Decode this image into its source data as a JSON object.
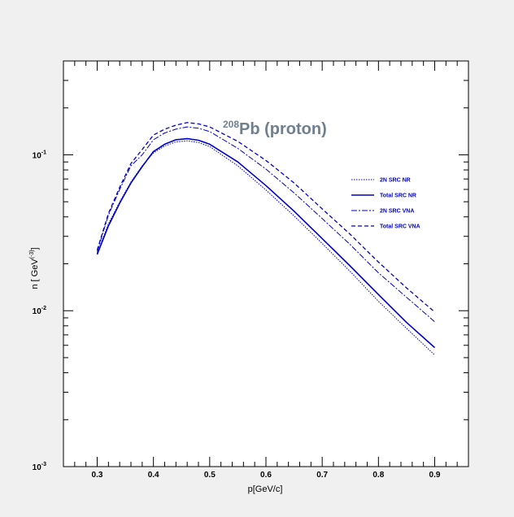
{
  "chart_data": {
    "type": "line",
    "title": "Pb (proton)",
    "title_superscript": "208",
    "title_color": "#6f7f90",
    "xlabel": "p[GeV/c]",
    "ylabel_base": "n [ GeV",
    "ylabel_exp": "(-3)",
    "ylabel_end": "]",
    "xlim": [
      0.24,
      0.96
    ],
    "ylim": [
      0.001,
      0.4
    ],
    "yscale": "log",
    "grid": false,
    "legend_position": "right",
    "line_color": "#0000cc",
    "x_ticks": [
      "0.3",
      "0.4",
      "0.5",
      "0.6",
      "0.7",
      "0.8",
      "0.9"
    ],
    "y_ticks": [
      {
        "base": "10",
        "exp": "-3",
        "value": 0.001
      },
      {
        "base": "10",
        "exp": "-2",
        "value": 0.01
      },
      {
        "base": "10",
        "exp": "-1",
        "value": 0.1
      }
    ],
    "x": [
      0.3,
      0.32,
      0.34,
      0.36,
      0.38,
      0.4,
      0.42,
      0.44,
      0.46,
      0.48,
      0.5,
      0.55,
      0.6,
      0.65,
      0.7,
      0.75,
      0.8,
      0.85,
      0.9
    ],
    "series": [
      {
        "name": "2N SRC NR",
        "dash": "1.5,1.5",
        "width": 1,
        "values": [
          0.0235,
          0.036,
          0.05,
          0.067,
          0.085,
          0.103,
          0.114,
          0.121,
          0.123,
          0.12,
          0.113,
          0.085,
          0.0595,
          0.0405,
          0.027,
          0.0178,
          0.0115,
          0.0077,
          0.0052
        ]
      },
      {
        "name": "Total SRC NR",
        "dash": "",
        "width": 1.6,
        "values": [
          0.023,
          0.035,
          0.049,
          0.066,
          0.084,
          0.105,
          0.117,
          0.125,
          0.127,
          0.124,
          0.117,
          0.09,
          0.0635,
          0.0435,
          0.029,
          0.0193,
          0.0127,
          0.0084,
          0.0058
        ]
      },
      {
        "name": "2N SRC VNA",
        "dash": "7,2,2,2",
        "width": 1,
        "values": [
          0.024,
          0.041,
          0.06,
          0.085,
          0.1,
          0.125,
          0.138,
          0.146,
          0.151,
          0.148,
          0.141,
          0.11,
          0.081,
          0.057,
          0.039,
          0.0265,
          0.0175,
          0.0122,
          0.0085
        ]
      },
      {
        "name": "Total SRC VNA",
        "dash": "5,3",
        "width": 1.3,
        "values": [
          0.0245,
          0.042,
          0.062,
          0.088,
          0.108,
          0.134,
          0.146,
          0.155,
          0.161,
          0.158,
          0.151,
          0.122,
          0.092,
          0.066,
          0.045,
          0.0308,
          0.0205,
          0.014,
          0.0098
        ]
      }
    ]
  }
}
